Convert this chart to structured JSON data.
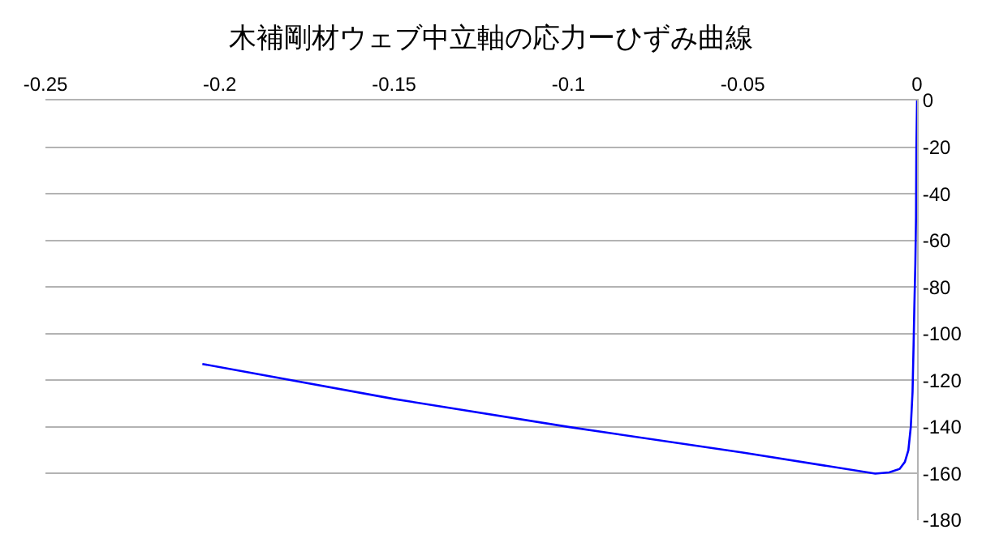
{
  "chart_data": {
    "type": "line",
    "title": "木補剛材ウェブ中立軸の応力ーひずみ曲線",
    "x": [
      0,
      -0.0002,
      -0.0003,
      -0.0005,
      -0.0008,
      -0.001,
      -0.0013,
      -0.0018,
      -0.0025,
      -0.0035,
      -0.005,
      -0.008,
      -0.012,
      -0.05,
      -0.1,
      -0.15,
      -0.205
    ],
    "series": [
      {
        "color": "#0000ff",
        "values": [
          0,
          -20,
          -50,
          -70,
          -90,
          -105,
          -125,
          -140,
          -150,
          -155,
          -158,
          -159.5,
          -160,
          -151,
          -140,
          -128,
          -113
        ]
      }
    ],
    "xlim": [
      -0.25,
      0
    ],
    "xticks": [
      -0.25,
      -0.2,
      -0.15,
      -0.1,
      -0.05,
      0
    ],
    "ylim": [
      -180,
      0
    ],
    "yticks": [
      -180,
      -160,
      -140,
      -120,
      -100,
      -80,
      -60,
      -40,
      -20,
      0
    ],
    "grid": "y",
    "marker": "none",
    "line_style": "solid"
  }
}
